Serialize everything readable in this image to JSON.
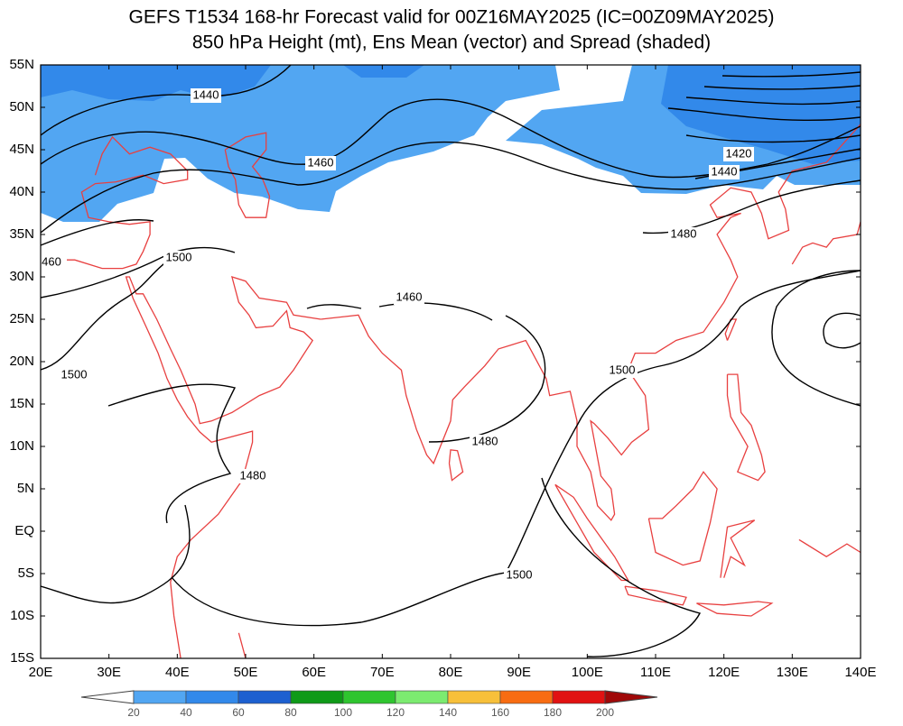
{
  "header": {
    "title_line1": "GEFS T1534 168-hr Forecast valid for 00Z16MAY2025 (IC=00Z09MAY2025)",
    "title_line2": "850 hPa Height (mt), Ens Mean (vector) and Spread (shaded)"
  },
  "map": {
    "lat_labels": [
      "55N",
      "50N",
      "45N",
      "40N",
      "35N",
      "30N",
      "25N",
      "20N",
      "15N",
      "10N",
      "5N",
      "EQ",
      "5S",
      "10S",
      "15S"
    ],
    "lon_labels": [
      "20E",
      "30E",
      "40E",
      "50E",
      "60E",
      "70E",
      "80E",
      "90E",
      "100E",
      "110E",
      "120E",
      "130E",
      "140E"
    ],
    "contour_labels": [
      "1440",
      "1460",
      "1500",
      "460",
      "1500",
      "1460",
      "1480",
      "1480",
      "1500",
      "1500",
      "1420",
      "1440",
      "1480"
    ]
  },
  "colorbar": {
    "labels": [
      20,
      40,
      60,
      80,
      100,
      120,
      140,
      160,
      180,
      200
    ],
    "colors": [
      "#ffffff",
      "#52a6f2",
      "#3289ea",
      "#1d60d0",
      "#0f9a18",
      "#2fc52f",
      "#7ceb70",
      "#f7c03a",
      "#f86c12",
      "#e11212",
      "#a00808"
    ]
  }
}
